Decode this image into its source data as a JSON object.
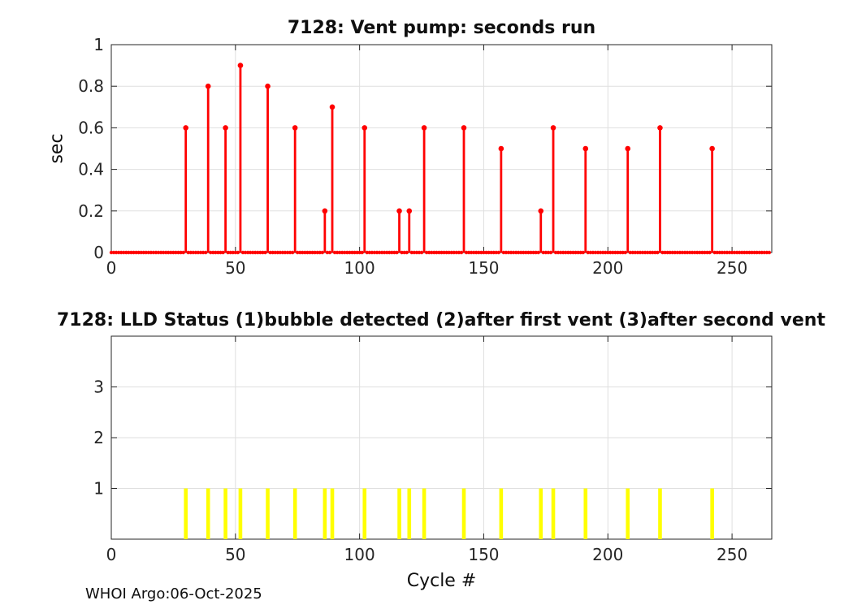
{
  "figure": {
    "footer": "WHOI Argo:06-Oct-2025",
    "background": "#ffffff",
    "axis_color": "#262626",
    "grid_color": "#dfdfdf",
    "text_color": "#262626"
  },
  "chart_data": [
    {
      "type": "stem",
      "title": "7128: Vent pump: seconds run",
      "xlabel": "",
      "ylabel": "sec",
      "xlim": [
        0,
        266
      ],
      "ylim": [
        0,
        1
      ],
      "xticks": [
        0,
        50,
        100,
        150,
        200,
        250
      ],
      "xtick_labels": [
        "0",
        "50",
        "100",
        "150",
        "200",
        "250"
      ],
      "yticks": [
        0,
        0.2,
        0.4,
        0.6,
        0.8,
        1
      ],
      "ytick_labels": [
        "0",
        "0.2",
        "0.4",
        "0.6",
        "0.8",
        "1"
      ],
      "grid": true,
      "legend": null,
      "color": "#ff0000",
      "baseline_value": 0,
      "baseline_cycle_range": [
        0,
        265
      ],
      "points": [
        {
          "x": 30,
          "y": 0.6
        },
        {
          "x": 39,
          "y": 0.8
        },
        {
          "x": 46,
          "y": 0.6
        },
        {
          "x": 52,
          "y": 0.9
        },
        {
          "x": 63,
          "y": 0.8
        },
        {
          "x": 74,
          "y": 0.6
        },
        {
          "x": 86,
          "y": 0.2
        },
        {
          "x": 89,
          "y": 0.7
        },
        {
          "x": 102,
          "y": 0.6
        },
        {
          "x": 116,
          "y": 0.2
        },
        {
          "x": 120,
          "y": 0.2
        },
        {
          "x": 126,
          "y": 0.6
        },
        {
          "x": 142,
          "y": 0.6
        },
        {
          "x": 157,
          "y": 0.5
        },
        {
          "x": 173,
          "y": 0.2
        },
        {
          "x": 178,
          "y": 0.6
        },
        {
          "x": 191,
          "y": 0.5
        },
        {
          "x": 208,
          "y": 0.5
        },
        {
          "x": 221,
          "y": 0.6
        },
        {
          "x": 242,
          "y": 0.5
        }
      ]
    },
    {
      "type": "bar",
      "title": "7128: LLD Status   (1)bubble detected   (2)after first vent  (3)after second vent",
      "xlabel": "Cycle #",
      "ylabel": "",
      "xlim": [
        0,
        266
      ],
      "ylim": [
        0,
        4
      ],
      "xticks": [
        0,
        50,
        100,
        150,
        200,
        250
      ],
      "xtick_labels": [
        "0",
        "50",
        "100",
        "150",
        "200",
        "250"
      ],
      "yticks": [
        1,
        2,
        3
      ],
      "ytick_labels": [
        "1",
        "2",
        "3"
      ],
      "grid": true,
      "legend": null,
      "color": "#ffff00",
      "bars": [
        {
          "x": 30,
          "y": 1
        },
        {
          "x": 39,
          "y": 1
        },
        {
          "x": 46,
          "y": 1
        },
        {
          "x": 52,
          "y": 1
        },
        {
          "x": 63,
          "y": 1
        },
        {
          "x": 74,
          "y": 1
        },
        {
          "x": 86,
          "y": 1
        },
        {
          "x": 89,
          "y": 1
        },
        {
          "x": 102,
          "y": 1
        },
        {
          "x": 116,
          "y": 1
        },
        {
          "x": 120,
          "y": 1
        },
        {
          "x": 126,
          "y": 1
        },
        {
          "x": 142,
          "y": 1
        },
        {
          "x": 157,
          "y": 1
        },
        {
          "x": 173,
          "y": 1
        },
        {
          "x": 178,
          "y": 1
        },
        {
          "x": 191,
          "y": 1
        },
        {
          "x": 208,
          "y": 1
        },
        {
          "x": 221,
          "y": 1
        },
        {
          "x": 242,
          "y": 1
        }
      ]
    }
  ]
}
